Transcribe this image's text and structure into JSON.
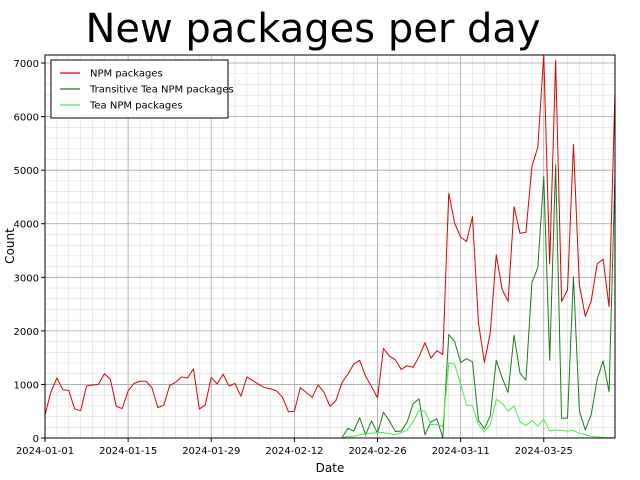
{
  "chart_data": {
    "type": "line",
    "title": "New packages per day",
    "xlabel": "Date",
    "ylabel": "Count",
    "x_start": "2024-01-01",
    "x_end": "2024-04-06",
    "xlim": [
      "2024-01-01",
      "2024-04-06"
    ],
    "ylim": [
      0,
      7150
    ],
    "x_ticks": [
      "2024-01-01",
      "2024-01-15",
      "2024-01-29",
      "2024-02-12",
      "2024-02-26",
      "2024-03-11",
      "2024-03-25"
    ],
    "y_ticks": [
      0,
      1000,
      2000,
      3000,
      4000,
      5000,
      6000,
      7000
    ],
    "grid": true,
    "legend_position": "top-left",
    "series": [
      {
        "name": "NPM packages",
        "color": "#dd0000",
        "values": [
          430,
          860,
          1120,
          900,
          890,
          540,
          510,
          970,
          990,
          1000,
          1200,
          1100,
          590,
          550,
          880,
          1020,
          1060,
          1060,
          940,
          570,
          610,
          980,
          1040,
          1140,
          1120,
          1290,
          540,
          620,
          1130,
          1010,
          1190,
          970,
          1020,
          780,
          1140,
          1070,
          1000,
          940,
          920,
          880,
          760,
          490,
          500,
          940,
          850,
          760,
          990,
          850,
          590,
          700,
          1030,
          1190,
          1380,
          1450,
          1150,
          960,
          750,
          1670,
          1530,
          1460,
          1280,
          1350,
          1320,
          1520,
          1780,
          1490,
          1630,
          1560,
          4570,
          4010,
          3750,
          3670,
          4130,
          2150,
          1410,
          1970,
          3420,
          2770,
          2550,
          4320,
          3820,
          3840,
          5070,
          5430,
          7150,
          3250,
          7050,
          2550,
          2760,
          5480,
          2860,
          2270,
          2560,
          3250,
          3340,
          2450,
          6480
        ],
        "point_labels": []
      },
      {
        "name": "Transitive Tea NPM packages",
        "color": "#1b7a1b",
        "values": [
          0,
          0,
          0,
          0,
          0,
          0,
          0,
          0,
          0,
          0,
          0,
          0,
          0,
          0,
          0,
          0,
          0,
          0,
          0,
          0,
          0,
          0,
          0,
          0,
          0,
          0,
          0,
          0,
          0,
          0,
          0,
          0,
          0,
          0,
          0,
          0,
          0,
          0,
          0,
          0,
          0,
          0,
          0,
          0,
          0,
          0,
          0,
          0,
          0,
          0,
          0,
          180,
          130,
          380,
          60,
          320,
          90,
          480,
          320,
          120,
          130,
          300,
          640,
          730,
          60,
          300,
          360,
          0,
          1930,
          1800,
          1410,
          1480,
          1420,
          330,
          170,
          420,
          1450,
          1120,
          850,
          1920,
          1210,
          1080,
          2900,
          3180,
          4880,
          1450,
          5100,
          370,
          370,
          3010,
          510,
          150,
          440,
          1100,
          1440,
          860,
          4940
        ],
        "point_labels": []
      },
      {
        "name": "Tea NPM packages",
        "color": "#44ee44",
        "values": [
          0,
          0,
          0,
          0,
          0,
          0,
          0,
          0,
          0,
          0,
          0,
          0,
          0,
          0,
          0,
          0,
          0,
          0,
          0,
          0,
          0,
          0,
          0,
          0,
          0,
          0,
          0,
          0,
          0,
          0,
          0,
          0,
          0,
          0,
          0,
          0,
          0,
          0,
          0,
          0,
          0,
          0,
          0,
          0,
          0,
          0,
          0,
          0,
          0,
          0,
          0,
          30,
          30,
          60,
          80,
          90,
          100,
          100,
          80,
          60,
          100,
          150,
          300,
          520,
          500,
          250,
          250,
          220,
          1400,
          1380,
          1000,
          620,
          600,
          250,
          120,
          250,
          720,
          650,
          500,
          600,
          300,
          230,
          330,
          220,
          350,
          130,
          150,
          140,
          130,
          140,
          90,
          60,
          30,
          20,
          10,
          5,
          5
        ],
        "point_labels": []
      }
    ]
  }
}
